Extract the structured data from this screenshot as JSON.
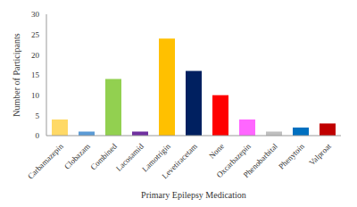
{
  "chart_data": {
    "type": "bar",
    "x_label": "Primary Epilepsy Medication",
    "y_label": "Number of Participants",
    "categories": [
      "Carbamazepin",
      "Clobazam",
      "Combined",
      "Lacosamid",
      "Lamotrigin",
      "Levetiracetam",
      "None",
      "Oxcarbazepin",
      "Phenobarbital",
      "Phenytoin",
      "Valproat"
    ],
    "values": [
      4,
      1,
      14,
      1,
      24,
      16,
      10,
      4,
      1,
      2,
      3
    ],
    "colors": [
      "#ffd966",
      "#5b9bd5",
      "#92d050",
      "#7030a0",
      "#ffc000",
      "#002060",
      "#ff0000",
      "#ff66ff",
      "#bfbfbf",
      "#0070c0",
      "#c00000"
    ],
    "ylim": [
      0,
      30
    ],
    "yticks": [
      0,
      5,
      10,
      15,
      20,
      25,
      30
    ],
    "grid": false
  }
}
